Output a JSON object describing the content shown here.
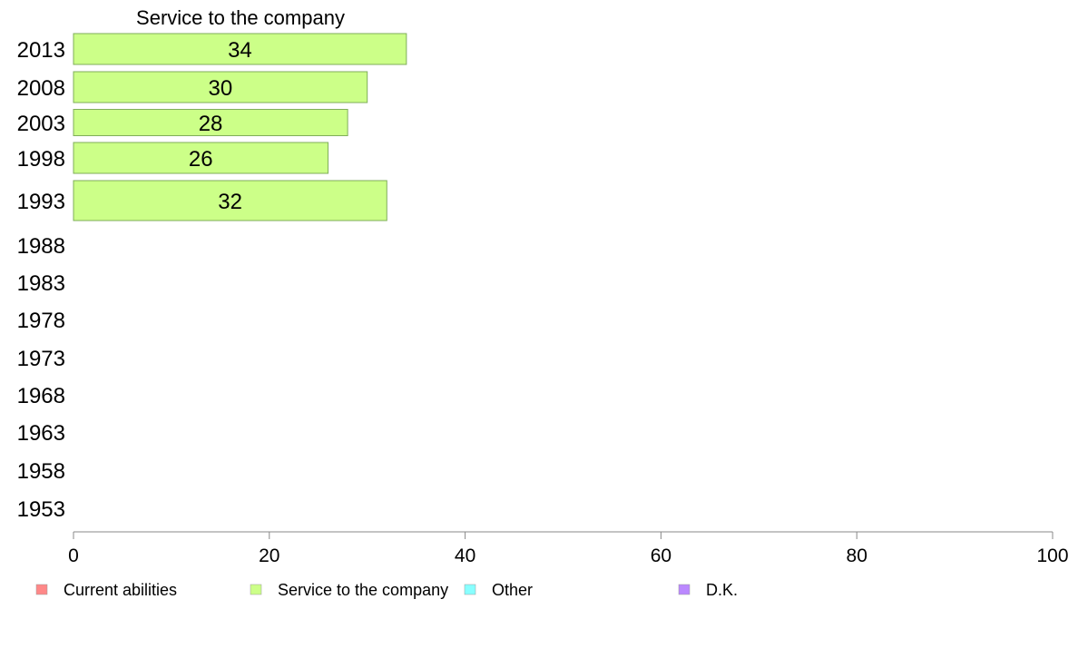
{
  "chart_data": {
    "type": "bar",
    "orientation": "horizontal",
    "title": "Service to the company",
    "categories": [
      "2013",
      "2008",
      "2003",
      "1998",
      "1993",
      "1988",
      "1983",
      "1978",
      "1973",
      "1968",
      "1963",
      "1958",
      "1953"
    ],
    "series": [
      {
        "name": "Service to the company",
        "color": "#ccff88",
        "values": [
          34,
          30,
          28,
          26,
          32,
          null,
          null,
          null,
          null,
          null,
          null,
          null,
          null
        ]
      }
    ],
    "xlim": [
      0,
      100
    ],
    "xticks": [
      "0",
      "20",
      "40",
      "60",
      "80",
      "100"
    ],
    "grid": false,
    "legend_position": "bottom",
    "legend": [
      {
        "label": "Current abilities",
        "color": "#ff8888"
      },
      {
        "label": "Service to the company",
        "color": "#ccff88"
      },
      {
        "label": "Other",
        "color": "#88ffff"
      },
      {
        "label": "D.K.",
        "color": "#bb88ff"
      }
    ]
  }
}
